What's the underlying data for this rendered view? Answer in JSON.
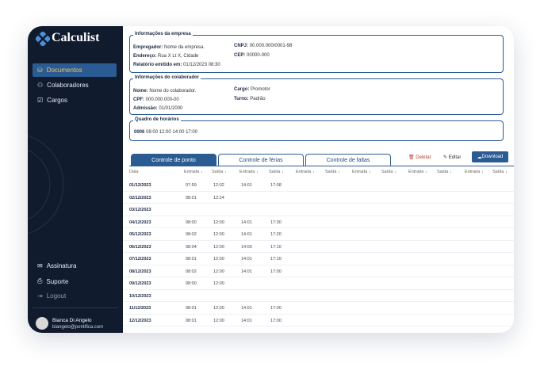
{
  "sidebar": {
    "logo": "Calculist",
    "menu": [
      "Documentos",
      "Colaboradores",
      "Cargos"
    ],
    "bottom_menu": [
      "Assinatura",
      "Suporte",
      "Logout"
    ],
    "user": {
      "name": "Bianca Di Angelo",
      "email": "biangelo@pontifica.com"
    }
  },
  "company": {
    "title": "Informações da empresa",
    "fields": [
      {
        "label": "Empregador:",
        "value": "Nome da empresa."
      },
      {
        "label": "Endereço:",
        "value": "Rua X Lt X, Cidade"
      },
      {
        "label": "Relatório emitido em:",
        "value": "01/12/2023 08:30"
      },
      {
        "label": "CNPJ:",
        "value": "00.000.000/0001-98"
      },
      {
        "label": "CEP:",
        "value": "00000-000"
      }
    ]
  },
  "employee": {
    "title": "Informações do colaborador",
    "fields": [
      {
        "label": "Nome:",
        "value": "Nome do colaborador."
      },
      {
        "label": "CPF:",
        "value": "000.000.000-00"
      },
      {
        "label": "Admissão:",
        "value": "01/01/2000"
      },
      {
        "label": "Cargo:",
        "value": "Promotor"
      },
      {
        "label": "Turno:",
        "value": "Padrão"
      }
    ]
  },
  "schedule": {
    "title": "Quadro de horários",
    "code": "0006",
    "times": "08:00 12:00 14:00 17:00"
  },
  "tabs": [
    "Controle de ponto",
    "Controle de férias",
    "Controle de faltas"
  ],
  "actions": [
    "Deletar",
    "Editar",
    "Download"
  ],
  "table": {
    "headers": [
      "Data",
      "Entrada ↓",
      "Saída ↓",
      "Entrada ↓",
      "Saída ↓",
      "Entrada ↓",
      "Saída ↓",
      "Entrada ↓",
      "Saída ↓",
      "Entrada ↓",
      "Saída ↓",
      "Entrada ↓",
      "Saída ↓"
    ],
    "rows": [
      {
        "date": "01/12/2023",
        "times": [
          "07:59",
          "12:02",
          "14:01",
          "17:08"
        ]
      },
      {
        "date": "02/12/2023",
        "times": [
          "08:01",
          "12:24"
        ]
      },
      {
        "date": "03/12/2023",
        "times": []
      },
      {
        "date": "04/12/2023",
        "times": [
          "08:00",
          "12:00",
          "14:01",
          "17:30"
        ]
      },
      {
        "date": "05/12/2023",
        "times": [
          "08:02",
          "12:00",
          "14:01",
          "17:20"
        ]
      },
      {
        "date": "06/12/2023",
        "times": [
          "08:04",
          "12:00",
          "14:00",
          "17:10"
        ]
      },
      {
        "date": "07/12/2023",
        "times": [
          "08:01",
          "12:00",
          "14:01",
          "17:10"
        ]
      },
      {
        "date": "08/12/2023",
        "times": [
          "08:02",
          "12:00",
          "14:01",
          "17:00"
        ]
      },
      {
        "date": "09/12/2023",
        "times": [
          "08:00",
          "12:00"
        ]
      },
      {
        "date": "10/12/2023",
        "times": []
      },
      {
        "date": "11/12/2023",
        "times": [
          "08:01",
          "12:00",
          "14:01",
          "17:00"
        ]
      },
      {
        "date": "12/12/2023",
        "times": [
          "08:01",
          "12:00",
          "14:01",
          "17:00"
        ]
      }
    ]
  }
}
